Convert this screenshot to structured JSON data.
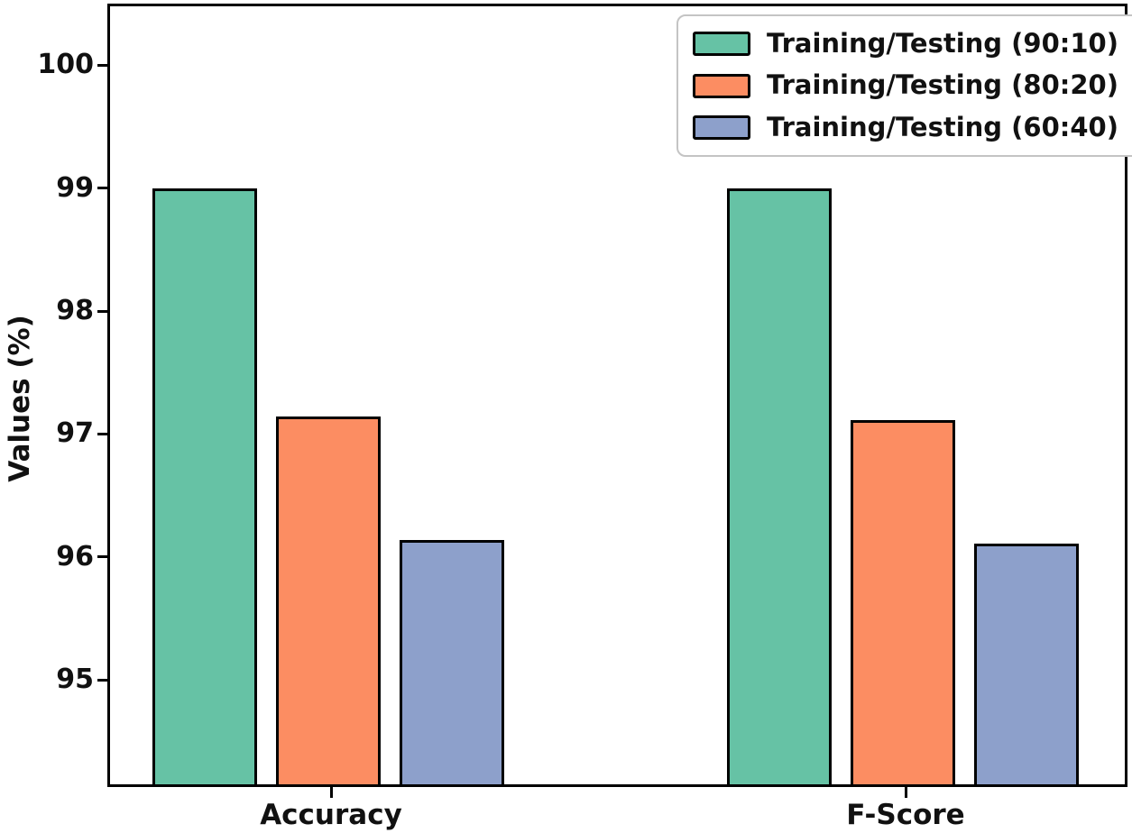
{
  "chart_data": {
    "type": "bar",
    "title": "",
    "xlabel": "",
    "ylabel": "Values (%)",
    "categories": [
      "Accuracy",
      "F-Score"
    ],
    "series": [
      {
        "name": "Training/Testing (90:10)",
        "color": "#66c2a5",
        "values": [
          99.0,
          99.0
        ]
      },
      {
        "name": "Training/Testing (80:20)",
        "color": "#fc8d62",
        "values": [
          97.14,
          97.11
        ]
      },
      {
        "name": "Training/Testing (60:40)",
        "color": "#8da0cb",
        "values": [
          96.14,
          96.11
        ]
      }
    ],
    "yticks": [
      95,
      96,
      97,
      98,
      99,
      100
    ],
    "ylim": [
      94.15,
      100.48
    ],
    "grid": false,
    "legend_position": "upper right",
    "bar_edge_color": "#000000",
    "background_color": "#ffffff"
  }
}
